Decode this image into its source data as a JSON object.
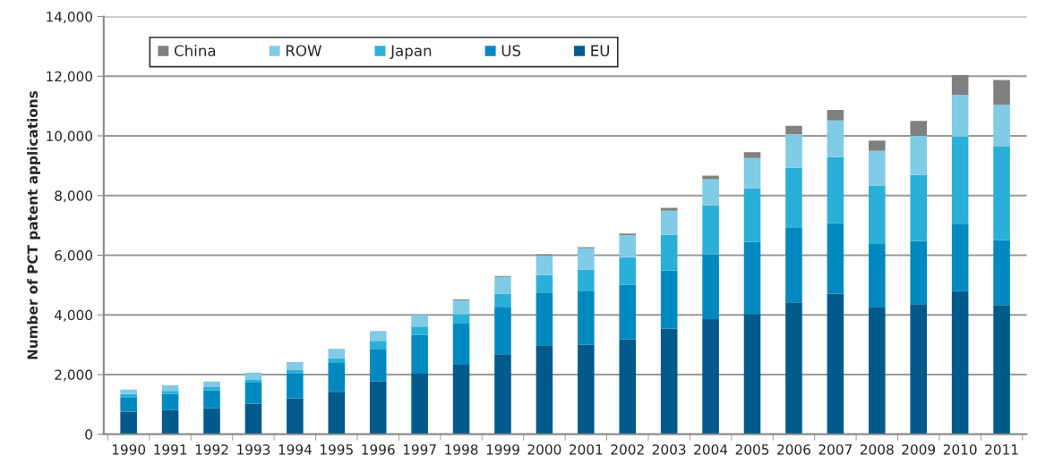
{
  "chart_data": {
    "type": "bar",
    "stacked": true,
    "ylabel": "Number of PCT patent applications",
    "categories": [
      "1990",
      "1991",
      "1992",
      "1993",
      "1994",
      "1995",
      "1996",
      "1997",
      "1998",
      "1999",
      "2000",
      "2001",
      "2002",
      "2003",
      "2004",
      "2005",
      "2006",
      "2007",
      "2008",
      "2009",
      "2010",
      "2011"
    ],
    "series": [
      {
        "name": "EU",
        "color": "#005a8c",
        "values": [
          760,
          810,
          870,
          1020,
          1200,
          1420,
          1770,
          2030,
          2330,
          2680,
          2980,
          3000,
          3180,
          3540,
          3860,
          4030,
          4420,
          4710,
          4270,
          4360,
          4800,
          4330
        ]
      },
      {
        "name": "US",
        "color": "#0089c0",
        "values": [
          460,
          540,
          600,
          710,
          830,
          970,
          1090,
          1300,
          1380,
          1590,
          1770,
          1810,
          1830,
          1950,
          2170,
          2410,
          2490,
          2370,
          2130,
          2110,
          2230,
          2170
        ]
      },
      {
        "name": "Japan",
        "color": "#2ab0d8",
        "values": [
          130,
          100,
          110,
          90,
          120,
          160,
          270,
          280,
          310,
          440,
          580,
          710,
          920,
          1190,
          1640,
          1810,
          2020,
          2210,
          1940,
          2220,
          2950,
          3140
        ]
      },
      {
        "name": "ROW",
        "color": "#80cbe6",
        "values": [
          150,
          190,
          190,
          250,
          270,
          310,
          330,
          390,
          470,
          560,
          660,
          710,
          740,
          810,
          880,
          1010,
          1120,
          1230,
          1160,
          1310,
          1390,
          1400
        ]
      },
      {
        "name": "China",
        "color": "#808080",
        "values": [
          null,
          null,
          null,
          null,
          null,
          null,
          null,
          null,
          30,
          30,
          40,
          40,
          60,
          100,
          120,
          190,
          290,
          350,
          340,
          500,
          670,
          830
        ]
      }
    ],
    "ylim": [
      0,
      14000
    ],
    "yticks": [
      {
        "value": 0,
        "label": "0"
      },
      {
        "value": 2000,
        "label": "2,000"
      },
      {
        "value": 4000,
        "label": "4,000"
      },
      {
        "value": 6000,
        "label": "6,000"
      },
      {
        "value": 8000,
        "label": "8,000"
      },
      {
        "value": 10000,
        "label": "10,000"
      },
      {
        "value": 12000,
        "label": "12,000"
      },
      {
        "value": 14000,
        "label": "14,000"
      }
    ],
    "grid": "y",
    "legend": "top left"
  }
}
